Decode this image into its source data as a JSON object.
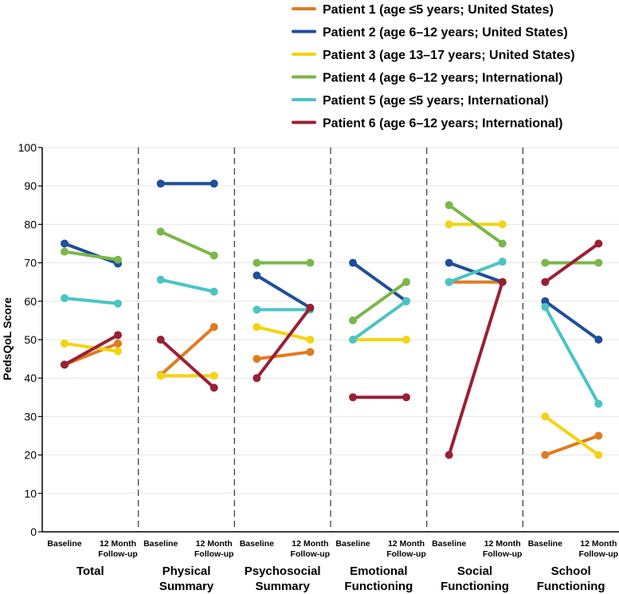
{
  "chart_data": {
    "type": "line",
    "ylabel": "PedsQoL Score",
    "ylim": [
      0,
      100
    ],
    "yticks": [
      0,
      10,
      20,
      30,
      40,
      50,
      60,
      70,
      80,
      90,
      100
    ],
    "grid": true,
    "legend_position": "top-right",
    "timepoints": [
      "Baseline",
      "12 Month Follow-up"
    ],
    "timepoint_labels": [
      [
        "Baseline"
      ],
      [
        "12 Month",
        "Follow-up"
      ]
    ],
    "panels": [
      {
        "name": "Total",
        "label_lines": [
          "Total"
        ]
      },
      {
        "name": "Physical Summary",
        "label_lines": [
          "Physical",
          "Summary"
        ]
      },
      {
        "name": "Psychosocial Summary",
        "label_lines": [
          "Psychosocial",
          "Summary"
        ]
      },
      {
        "name": "Emotional Functioning",
        "label_lines": [
          "Emotional",
          "Functioning"
        ]
      },
      {
        "name": "Social Functioning",
        "label_lines": [
          "Social",
          "Functioning"
        ]
      },
      {
        "name": "School Functioning",
        "label_lines": [
          "School",
          "Functioning"
        ]
      }
    ],
    "series": [
      {
        "name": "Patient 1 (age ≤5 years; United States)",
        "color": "#e07b1f",
        "values": [
          [
            43.5,
            49
          ],
          [
            40.8,
            53.3
          ],
          [
            45,
            46.8
          ],
          [
            null,
            null
          ],
          [
            65,
            65
          ],
          [
            20,
            25
          ]
        ]
      },
      {
        "name": "Patient 2 (age 6–12 years; United States)",
        "color": "#1f4e9a",
        "values": [
          [
            75,
            69.8
          ],
          [
            90.6,
            90.6
          ],
          [
            66.7,
            58.3
          ],
          [
            70,
            60
          ],
          [
            70,
            65
          ],
          [
            60,
            50
          ]
        ]
      },
      {
        "name": "Patient 3 (age 13–17 years; United States)",
        "color": "#f4d312",
        "values": [
          [
            49,
            47
          ],
          [
            40.6,
            40.6
          ],
          [
            53.3,
            50
          ],
          [
            50,
            50
          ],
          [
            80,
            80
          ],
          [
            30,
            20
          ]
        ]
      },
      {
        "name": "Patient 4 (age 6–12 years; International)",
        "color": "#7ab648",
        "values": [
          [
            72.9,
            70.8
          ],
          [
            78.1,
            71.9
          ],
          [
            70,
            70
          ],
          [
            55,
            65
          ],
          [
            85,
            75
          ],
          [
            70,
            70
          ]
        ]
      },
      {
        "name": "Patient 5 (age ≤5 years; International)",
        "color": "#4bc4c4",
        "values": [
          [
            60.8,
            59.4
          ],
          [
            65.6,
            62.5
          ],
          [
            57.8,
            57.8
          ],
          [
            50,
            60
          ],
          [
            65,
            70.3
          ],
          [
            58.5,
            33.3
          ]
        ]
      },
      {
        "name": "Patient 6 (age 6–12 years; International)",
        "color": "#9b1f35",
        "values": [
          [
            43.5,
            51.2
          ],
          [
            50,
            37.5
          ],
          [
            40,
            58.3
          ],
          [
            35,
            35
          ],
          [
            20,
            65
          ],
          [
            65,
            75
          ]
        ]
      }
    ]
  }
}
